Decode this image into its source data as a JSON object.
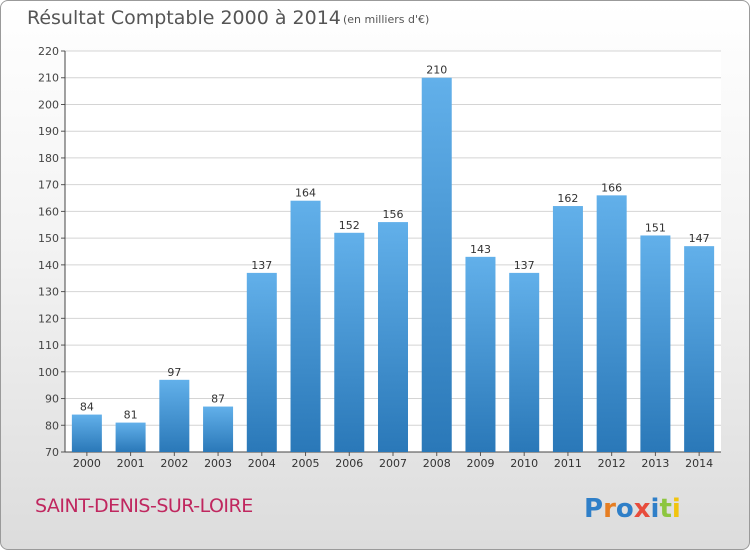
{
  "title": "Résultat Comptable 2000 à 2014",
  "subtitle": "(en milliers d'€)",
  "commune": "SAINT-DENIS-SUR-LOIRE",
  "logo_text": "Proxiti",
  "colors": {
    "bar_top": "#62b0ea",
    "bar_bottom": "#2a78b8",
    "grid": "#d4d4d4",
    "commune": "#c0275f"
  },
  "chart_data": {
    "type": "bar",
    "title": "Résultat Comptable 2000 à 2014",
    "subtitle": "(en milliers d'€)",
    "xlabel": "",
    "ylabel": "",
    "categories": [
      "2000",
      "2001",
      "2002",
      "2003",
      "2004",
      "2005",
      "2006",
      "2007",
      "2008",
      "2009",
      "2010",
      "2011",
      "2012",
      "2013",
      "2014"
    ],
    "values": [
      84,
      81,
      97,
      87,
      137,
      164,
      152,
      156,
      210,
      143,
      137,
      162,
      166,
      151,
      147
    ],
    "ylim": [
      70,
      220
    ],
    "yticks": [
      70,
      80,
      90,
      100,
      110,
      120,
      130,
      140,
      150,
      160,
      170,
      180,
      190,
      200,
      210,
      220
    ],
    "grid": true,
    "data_labels": true
  }
}
